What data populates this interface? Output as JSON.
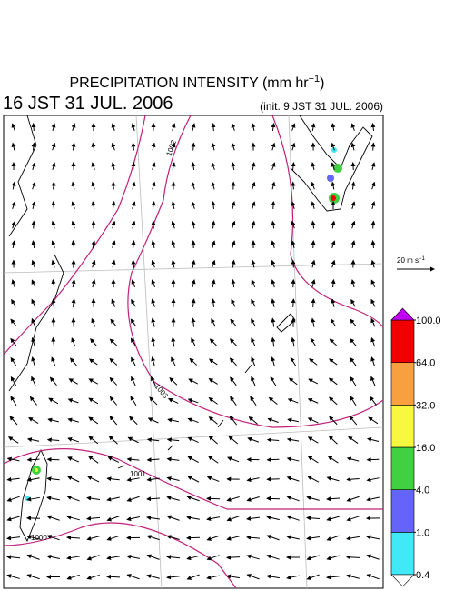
{
  "header": {
    "title": {
      "text": "PRECIPITATION INTENSITY (mm hr",
      "sup": "−1",
      "end": ")"
    },
    "valid_time": "16 JST 31 JUL. 2006",
    "init_time": "(init. 9 JST 31 JUL. 2006)"
  },
  "reference_vector": {
    "text": "20 m s",
    "sup": "−1"
  },
  "isobar_labels": [
    "1002",
    "1003",
    "1001",
    "1000"
  ],
  "colorbar": {
    "ticks": [
      {
        "value": 0.4,
        "label": "0.4"
      },
      {
        "value": 1,
        "label": "1.0"
      },
      {
        "value": 4,
        "label": "4.0"
      },
      {
        "value": 16,
        "label": "16.0"
      },
      {
        "value": 32,
        "label": "32.0"
      },
      {
        "value": 64,
        "label": "64.0"
      },
      {
        "value": 100,
        "label": "100.0"
      }
    ],
    "colors": [
      "#40e8f8",
      "#6464f8",
      "#40d040",
      "#f8f840",
      "#f8a040",
      "#f00000"
    ],
    "under_color": "#ffffff",
    "over_color": "#c000f0"
  }
}
